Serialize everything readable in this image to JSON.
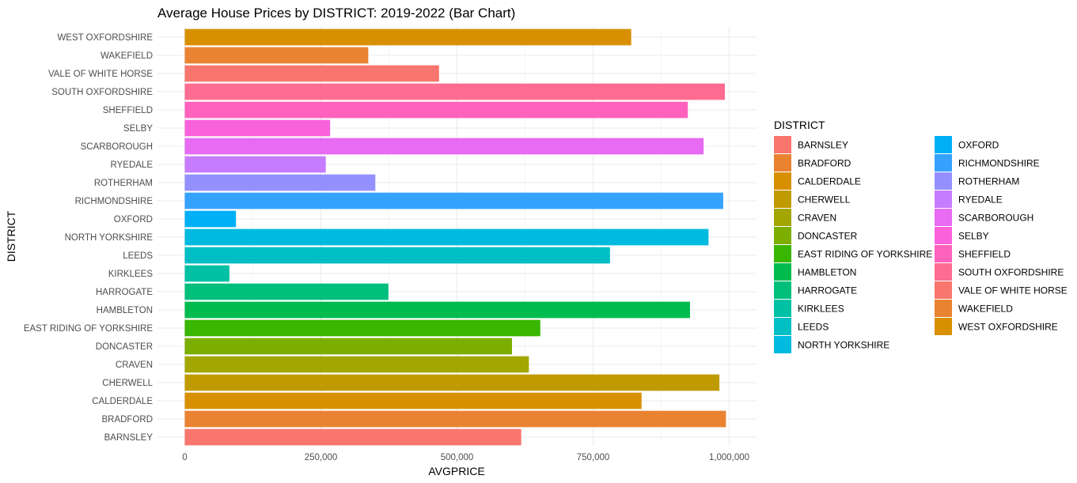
{
  "chart_data": {
    "type": "bar",
    "orientation": "horizontal",
    "title": "Average House Prices by DISTRICT: 2019-2022 (Bar Chart)",
    "xlabel": "AVGPRICE",
    "ylabel": "DISTRICT",
    "xlim": [
      0,
      1050000
    ],
    "x_ticks": [
      0,
      250000,
      500000,
      750000,
      1000000
    ],
    "x_tick_labels": [
      "0",
      "250,000",
      "500,000",
      "750,000",
      "1,000,000"
    ],
    "grid": true,
    "legend_title": "DISTRICT",
    "legend_position": "right",
    "categories": [
      "BARNSLEY",
      "BRADFORD",
      "CALDERDALE",
      "CHERWELL",
      "CRAVEN",
      "DONCASTER",
      "EAST RIDING OF YORKSHIRE",
      "HAMBLETON",
      "HARROGATE",
      "KIRKLEES",
      "LEEDS",
      "NORTH YORKSHIRE",
      "OXFORD",
      "RICHMONDSHIRE",
      "ROTHERHAM",
      "RYEDALE",
      "SCARBOROUGH",
      "SELBY",
      "SHEFFIELD",
      "SOUTH OXFORDSHIRE",
      "VALE OF WHITE HORSE",
      "WAKEFIELD",
      "WEST OXFORDSHIRE"
    ],
    "values": [
      618000,
      994000,
      839000,
      982000,
      632000,
      601000,
      653000,
      928000,
      374000,
      82000,
      781000,
      962000,
      94000,
      989000,
      350000,
      259000,
      953000,
      267000,
      924000,
      992000,
      467000,
      337000,
      820000
    ],
    "colors": [
      "#F8766D",
      "#EA8331",
      "#D89000",
      "#C09B00",
      "#A3A500",
      "#7CAE00",
      "#39B600",
      "#00BB4E",
      "#00BF7D",
      "#00C1A3",
      "#00BFC4",
      "#00BAE0",
      "#00B0F6",
      "#35A2FF",
      "#9590FF",
      "#C77CFF",
      "#E76BF3",
      "#FA62DB",
      "#FF62BC",
      "#FF6C91",
      "#F8766D",
      "#EA8331",
      "#D89000"
    ]
  }
}
